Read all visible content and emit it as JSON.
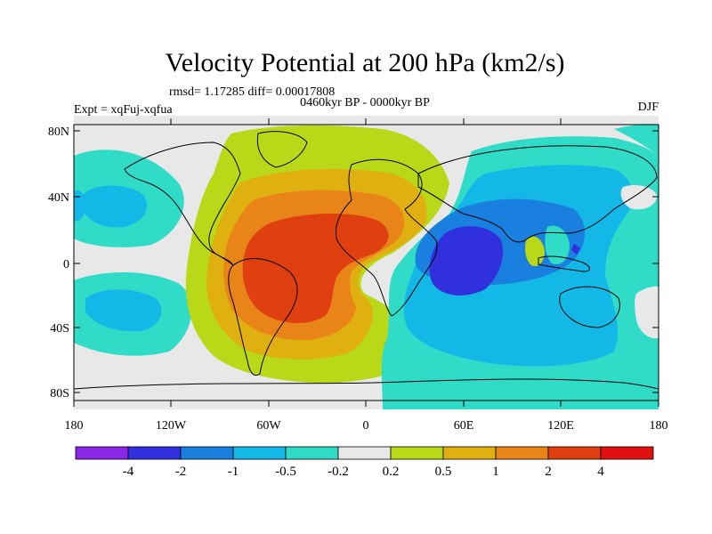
{
  "title": "Velocity Potential at 200 hPa (km2/s)",
  "stats": "rmsd= 1.17285 diff= 0.00017808",
  "period": "0460kyr BP - 0000kyr BP",
  "experiment": "Expt = xqFuj-xqfua",
  "season": "DJF",
  "lat_ticks": [
    "80N",
    "40N",
    "0",
    "40S",
    "80S"
  ],
  "lon_ticks": [
    "180",
    "120W",
    "60W",
    "0",
    "60E",
    "120E",
    "180"
  ],
  "colorbar": {
    "labels": [
      "-4",
      "-2",
      "-1",
      "-0.5",
      "-0.2",
      "0.2",
      "0.5",
      "1",
      "2",
      "4"
    ],
    "colors": [
      "#8b26e6",
      "#3030dd",
      "#1a80e0",
      "#14b8e6",
      "#30dcc8",
      "#e8e8e8",
      "#b8d818",
      "#e0b010",
      "#e88418",
      "#e04010",
      "#e01010"
    ]
  },
  "map_colors": {
    "neutral": "#e8e8e8",
    "neg_weak": "#30dcc8",
    "neg_light": "#14b8e6",
    "neg_mid": "#1a80e0",
    "neg_strong": "#3030dd",
    "pos_weak": "#b8d818",
    "pos_light": "#e0b010",
    "pos_mid": "#e88418",
    "pos_strong": "#e04010",
    "coast": "#000000"
  }
}
